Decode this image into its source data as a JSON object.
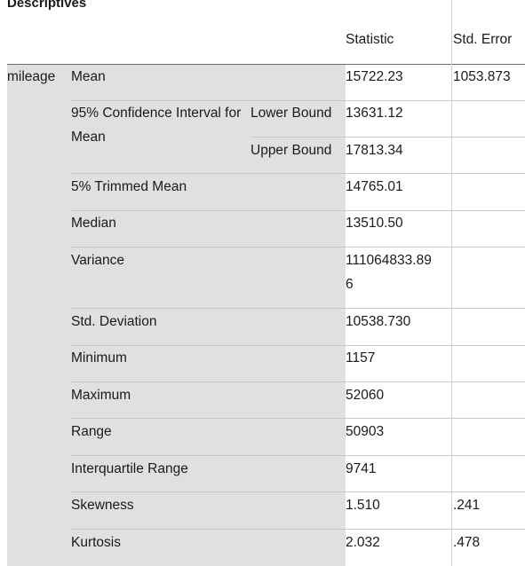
{
  "title": "Descriptives",
  "headers": {
    "statistic": "Statistic",
    "std_error": "Std. Error"
  },
  "variable": "mileage",
  "rows": {
    "mean": {
      "label": "Mean",
      "statistic": "15722.23",
      "std_error": "1053.873"
    },
    "ci": {
      "label": "95% Confidence Interval for Mean",
      "lower_label": "Lower Bound",
      "lower_value": "13631.12",
      "upper_label": "Upper Bound",
      "upper_value": "17813.34"
    },
    "trimmed": {
      "label": "5% Trimmed Mean",
      "statistic": "14765.01"
    },
    "median": {
      "label": "Median",
      "statistic": "13510.50"
    },
    "variance": {
      "label": "Variance",
      "statistic_line1": "111064833.89",
      "statistic_line2": "6"
    },
    "std_dev": {
      "label": "Std. Deviation",
      "statistic": "10538.730"
    },
    "minimum": {
      "label": "Minimum",
      "statistic": "1157"
    },
    "maximum": {
      "label": "Maximum",
      "statistic": "52060"
    },
    "range": {
      "label": "Range",
      "statistic": "50903"
    },
    "iqr": {
      "label": "Interquartile Range",
      "statistic": "9741"
    },
    "skewness": {
      "label": "Skewness",
      "statistic": "1.510",
      "std_error": ".241"
    },
    "kurtosis": {
      "label": "Kurtosis",
      "statistic": "2.032",
      "std_error": ".478"
    }
  }
}
